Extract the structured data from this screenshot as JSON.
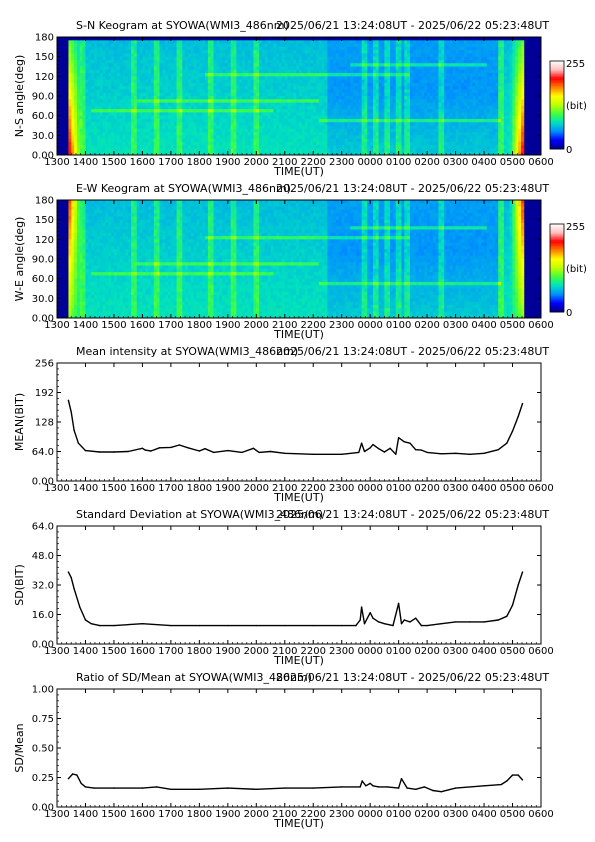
{
  "panels": [
    {
      "title": "S-N Keogram at SYOWA(WMI3_486nm)",
      "date_range": "2025/06/21 13:24:08UT - 2025/06/22 05:23:48UT",
      "ylabel": "N-S angle(deg)",
      "xlabel": "TIME(UT)",
      "yticks": [
        "0.00",
        "30.0",
        "60.0",
        "90.0",
        "120",
        "150",
        "180"
      ],
      "colorbar": {
        "max": "255",
        "unit": "(bit)",
        "min": "0"
      }
    },
    {
      "title": "E-W Keogram at SYOWA(WMI3_486nm)",
      "date_range": "2025/06/21 13:24:08UT - 2025/06/22 05:23:48UT",
      "ylabel": "W-E angle(deg)",
      "xlabel": "TIME(UT)",
      "yticks": [
        "0.00",
        "30.0",
        "60.0",
        "90.0",
        "120",
        "150",
        "180"
      ],
      "colorbar": {
        "max": "255",
        "unit": "(bit)",
        "min": "0"
      }
    },
    {
      "title": "Mean intensity at SYOWA(WMI3_486nm)",
      "date_range": "2025/06/21 13:24:08UT - 2025/06/22 05:23:48UT",
      "ylabel": "MEAN(BIT)",
      "xlabel": "TIME(UT)",
      "yticks": [
        "0.00",
        "64.0",
        "128",
        "192",
        "256"
      ]
    },
    {
      "title": "Standard Deviation at SYOWA(WMI3_486nm)",
      "date_range": "2025/06/21 13:24:08UT - 2025/06/22 05:23:48UT",
      "ylabel": "SD(BIT)",
      "xlabel": "TIME(UT)",
      "yticks": [
        "0.00",
        "16.0",
        "32.0",
        "48.0",
        "64.0"
      ]
    },
    {
      "title": "Ratio of SD/Mean at SYOWA(WMI3_486nm)",
      "date_range": "2025/06/21 13:24:08UT - 2025/06/22 05:23:48UT",
      "ylabel": "SD/Mean",
      "xlabel": "TIME(UT)",
      "yticks": [
        "0.00",
        "0.25",
        "0.50",
        "0.75",
        "1.00"
      ]
    }
  ],
  "xticks": [
    "1300",
    "1400",
    "1500",
    "1600",
    "1700",
    "1800",
    "1900",
    "2000",
    "2100",
    "2200",
    "2300",
    "0000",
    "0100",
    "0200",
    "0300",
    "0400",
    "0500",
    "0600"
  ],
  "colormap": [
    "#000080",
    "#0000ff",
    "#0090ff",
    "#00e0c0",
    "#40ff40",
    "#c0ff00",
    "#ffff00",
    "#ff8000",
    "#ff0000",
    "#ffc0c0",
    "#ffffff"
  ],
  "chart_data": [
    {
      "type": "heatmap",
      "title": "S-N Keogram at SYOWA(WMI3_486nm)",
      "xlabel": "TIME(UT)",
      "ylabel": "N-S angle(deg)",
      "x_range_hours_ut": [
        13,
        30
      ],
      "ylim": [
        0,
        180
      ],
      "data_start_ut": "13:24:08",
      "data_end_ut": "05:23:48",
      "colorbar_range": [
        0,
        255
      ],
      "typical_level_bit": 60,
      "bright_bands_ut": [
        13.9,
        15.7,
        16.5,
        17.3,
        18.4,
        19.2,
        20.0,
        23.8,
        24.2,
        24.6,
        25.0,
        25.3,
        26.5,
        28.6
      ]
    },
    {
      "type": "heatmap",
      "title": "E-W Keogram at SYOWA(WMI3_486nm)",
      "xlabel": "TIME(UT)",
      "ylabel": "W-E angle(deg)",
      "x_range_hours_ut": [
        13,
        30
      ],
      "ylim": [
        0,
        180
      ],
      "data_start_ut": "13:24:08",
      "data_end_ut": "05:23:48",
      "colorbar_range": [
        0,
        255
      ],
      "typical_level_bit": 60,
      "bright_bands_ut": [
        13.9,
        15.7,
        16.5,
        17.3,
        18.4,
        19.2,
        20.0,
        23.8,
        24.2,
        24.6,
        25.0,
        25.3,
        26.5,
        28.6
      ]
    },
    {
      "type": "line",
      "title": "Mean intensity at SYOWA(WMI3_486nm)",
      "xlabel": "TIME(UT)",
      "ylabel": "MEAN(BIT)",
      "ylim": [
        0,
        256
      ],
      "x_hours_ut": [
        13.4,
        13.5,
        13.6,
        13.75,
        14.0,
        14.5,
        15.0,
        15.5,
        16.0,
        16.1,
        16.3,
        16.6,
        17.0,
        17.3,
        17.6,
        18.0,
        18.2,
        18.5,
        19.0,
        19.5,
        19.9,
        20.1,
        20.5,
        21.0,
        22.0,
        23.0,
        23.6,
        23.7,
        23.8,
        24.0,
        24.1,
        24.3,
        24.5,
        24.7,
        24.9,
        25.0,
        25.2,
        25.4,
        25.6,
        25.8,
        26.0,
        26.5,
        27.0,
        27.5,
        28.0,
        28.5,
        28.8,
        29.0,
        29.2,
        29.35
      ],
      "y_values": [
        175,
        150,
        110,
        82,
        66,
        63,
        63,
        64,
        71,
        67,
        65,
        72,
        73,
        78,
        72,
        65,
        70,
        62,
        66,
        62,
        71,
        62,
        64,
        60,
        58,
        58,
        62,
        82,
        64,
        72,
        79,
        70,
        63,
        71,
        58,
        94,
        85,
        82,
        68,
        67,
        62,
        59,
        60,
        58,
        60,
        68,
        82,
        108,
        140,
        168
      ]
    },
    {
      "type": "line",
      "title": "Standard Deviation at SYOWA(WMI3_486nm)",
      "xlabel": "TIME(UT)",
      "ylabel": "SD(BIT)",
      "ylim": [
        0,
        64
      ],
      "x_hours_ut": [
        13.4,
        13.5,
        13.6,
        13.8,
        14.0,
        14.2,
        14.5,
        15.0,
        16.0,
        17.0,
        18.0,
        19.0,
        20.0,
        21.0,
        22.0,
        23.0,
        23.5,
        23.65,
        23.7,
        23.8,
        24.0,
        24.1,
        24.3,
        24.5,
        24.8,
        25.0,
        25.1,
        25.2,
        25.4,
        25.6,
        25.8,
        26.0,
        26.5,
        27.0,
        27.5,
        28.0,
        28.5,
        28.8,
        29.0,
        29.2,
        29.35
      ],
      "y_values": [
        39,
        36,
        30,
        20,
        13,
        11,
        10,
        10,
        11,
        10,
        10,
        10,
        10,
        10,
        10,
        10,
        10,
        13,
        20,
        11,
        17,
        14,
        12,
        11,
        10,
        22,
        11,
        13,
        12,
        14,
        10,
        10,
        11,
        12,
        12,
        12,
        13,
        15,
        21,
        32,
        39
      ]
    },
    {
      "type": "line",
      "title": "Ratio of SD/Mean at SYOWA(WMI3_486nm)",
      "xlabel": "TIME(UT)",
      "ylabel": "SD/Mean",
      "ylim": [
        0,
        1
      ],
      "x_hours_ut": [
        13.4,
        13.55,
        13.7,
        13.85,
        14.0,
        14.3,
        15.0,
        16.0,
        16.5,
        17.0,
        18.0,
        19.0,
        20.0,
        21.0,
        22.0,
        23.0,
        23.65,
        23.72,
        23.85,
        24.0,
        24.1,
        24.3,
        24.6,
        25.0,
        25.1,
        25.3,
        25.6,
        25.9,
        26.2,
        26.5,
        27.0,
        28.0,
        28.6,
        28.8,
        29.0,
        29.2,
        29.35
      ],
      "y_values": [
        0.24,
        0.28,
        0.27,
        0.2,
        0.17,
        0.16,
        0.16,
        0.16,
        0.17,
        0.15,
        0.15,
        0.16,
        0.15,
        0.16,
        0.16,
        0.17,
        0.17,
        0.22,
        0.18,
        0.2,
        0.18,
        0.17,
        0.17,
        0.16,
        0.24,
        0.16,
        0.15,
        0.17,
        0.14,
        0.13,
        0.16,
        0.18,
        0.19,
        0.22,
        0.27,
        0.27,
        0.23
      ]
    }
  ]
}
